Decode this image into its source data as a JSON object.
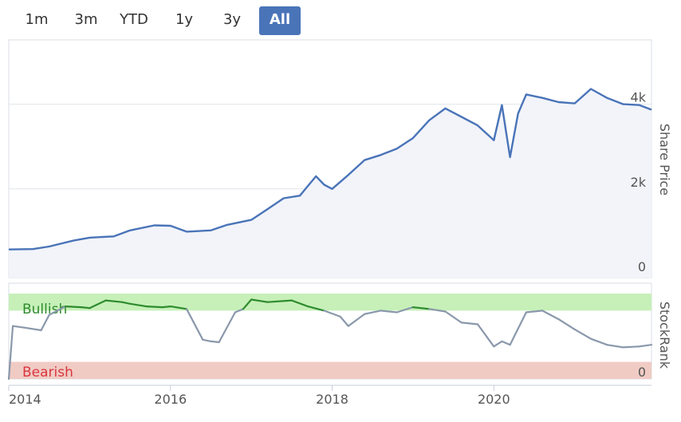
{
  "range_selector": {
    "buttons": [
      {
        "label": "1m",
        "active": false
      },
      {
        "label": "3m",
        "active": false
      },
      {
        "label": "YTD",
        "active": false
      },
      {
        "label": "1y",
        "active": false
      },
      {
        "label": "3y",
        "active": false
      },
      {
        "label": "All",
        "active": true
      }
    ]
  },
  "colors": {
    "price_line": "#4a74b8",
    "price_area": "#f2f4fa",
    "bullish_fill": "#c6f0b8",
    "bullish_line": "#2e8b2e",
    "bearish_fill": "#f0cbc4",
    "bearish_text": "#d9363e",
    "rank_line": "#8a98ab",
    "grid": "#dfe4ec",
    "active_button": "#4a74b8"
  },
  "chart_data": [
    {
      "type": "area",
      "ylabel": "Share Price",
      "ylim": [
        0,
        4200
      ],
      "yticks": [
        0,
        2000,
        4000
      ],
      "ytick_labels": [
        "0",
        "2k",
        "4k"
      ],
      "grid": true,
      "x": [
        2014.0,
        2014.3,
        2014.5,
        2014.8,
        2015.0,
        2015.3,
        2015.5,
        2015.8,
        2016.0,
        2016.2,
        2016.5,
        2016.7,
        2016.9,
        2017.0,
        2017.2,
        2017.4,
        2017.6,
        2017.8,
        2017.9,
        2018.0,
        2018.2,
        2018.4,
        2018.6,
        2018.8,
        2019.0,
        2019.2,
        2019.4,
        2019.6,
        2019.8,
        2020.0,
        2020.1,
        2020.2,
        2020.3,
        2020.4,
        2020.6,
        2020.8,
        2021.0,
        2021.2,
        2021.4,
        2021.6,
        2021.8,
        2021.95
      ],
      "values": [
        570,
        580,
        640,
        780,
        850,
        880,
        1020,
        1140,
        1130,
        990,
        1020,
        1150,
        1230,
        1270,
        1520,
        1780,
        1840,
        2300,
        2100,
        2000,
        2330,
        2680,
        2800,
        2950,
        3200,
        3620,
        3900,
        3700,
        3500,
        3150,
        3980,
        2750,
        3780,
        4230,
        4150,
        4050,
        4020,
        4360,
        4150,
        4000,
        3980,
        3870
      ]
    },
    {
      "type": "line",
      "ylabel": "StockRank",
      "ylim": [
        0,
        100
      ],
      "yticks": [
        0
      ],
      "ytick_labels": [
        "0"
      ],
      "xticks": [
        2014,
        2016,
        2018,
        2020
      ],
      "xtick_labels": [
        "2014",
        "2016",
        "2018",
        "2020"
      ],
      "zones": [
        {
          "label": "Bullish",
          "from": 80,
          "to": 100
        },
        {
          "label": "Bearish",
          "from": 0,
          "to": 20
        }
      ],
      "x": [
        2014.0,
        2014.05,
        2014.2,
        2014.4,
        2014.5,
        2014.7,
        2014.9,
        2015.0,
        2015.2,
        2015.4,
        2015.5,
        2015.7,
        2015.9,
        2016.0,
        2016.2,
        2016.4,
        2016.5,
        2016.6,
        2016.8,
        2016.9,
        2017.0,
        2017.2,
        2017.5,
        2017.7,
        2017.9,
        2018.1,
        2018.2,
        2018.4,
        2018.6,
        2018.8,
        2019.0,
        2019.2,
        2019.4,
        2019.6,
        2019.8,
        2020.0,
        2020.1,
        2020.2,
        2020.4,
        2020.6,
        2020.8,
        2021.0,
        2021.2,
        2021.4,
        2021.6,
        2021.8,
        2021.95
      ],
      "values": [
        0,
        62,
        60,
        57,
        75,
        85,
        84,
        83,
        92,
        90,
        88,
        85,
        84,
        85,
        82,
        46,
        44,
        43,
        78,
        82,
        93,
        90,
        92,
        85,
        80,
        73,
        62,
        76,
        80,
        78,
        84,
        82,
        79,
        66,
        64,
        38,
        44,
        40,
        78,
        80,
        70,
        58,
        47,
        40,
        37,
        38,
        40
      ]
    }
  ]
}
